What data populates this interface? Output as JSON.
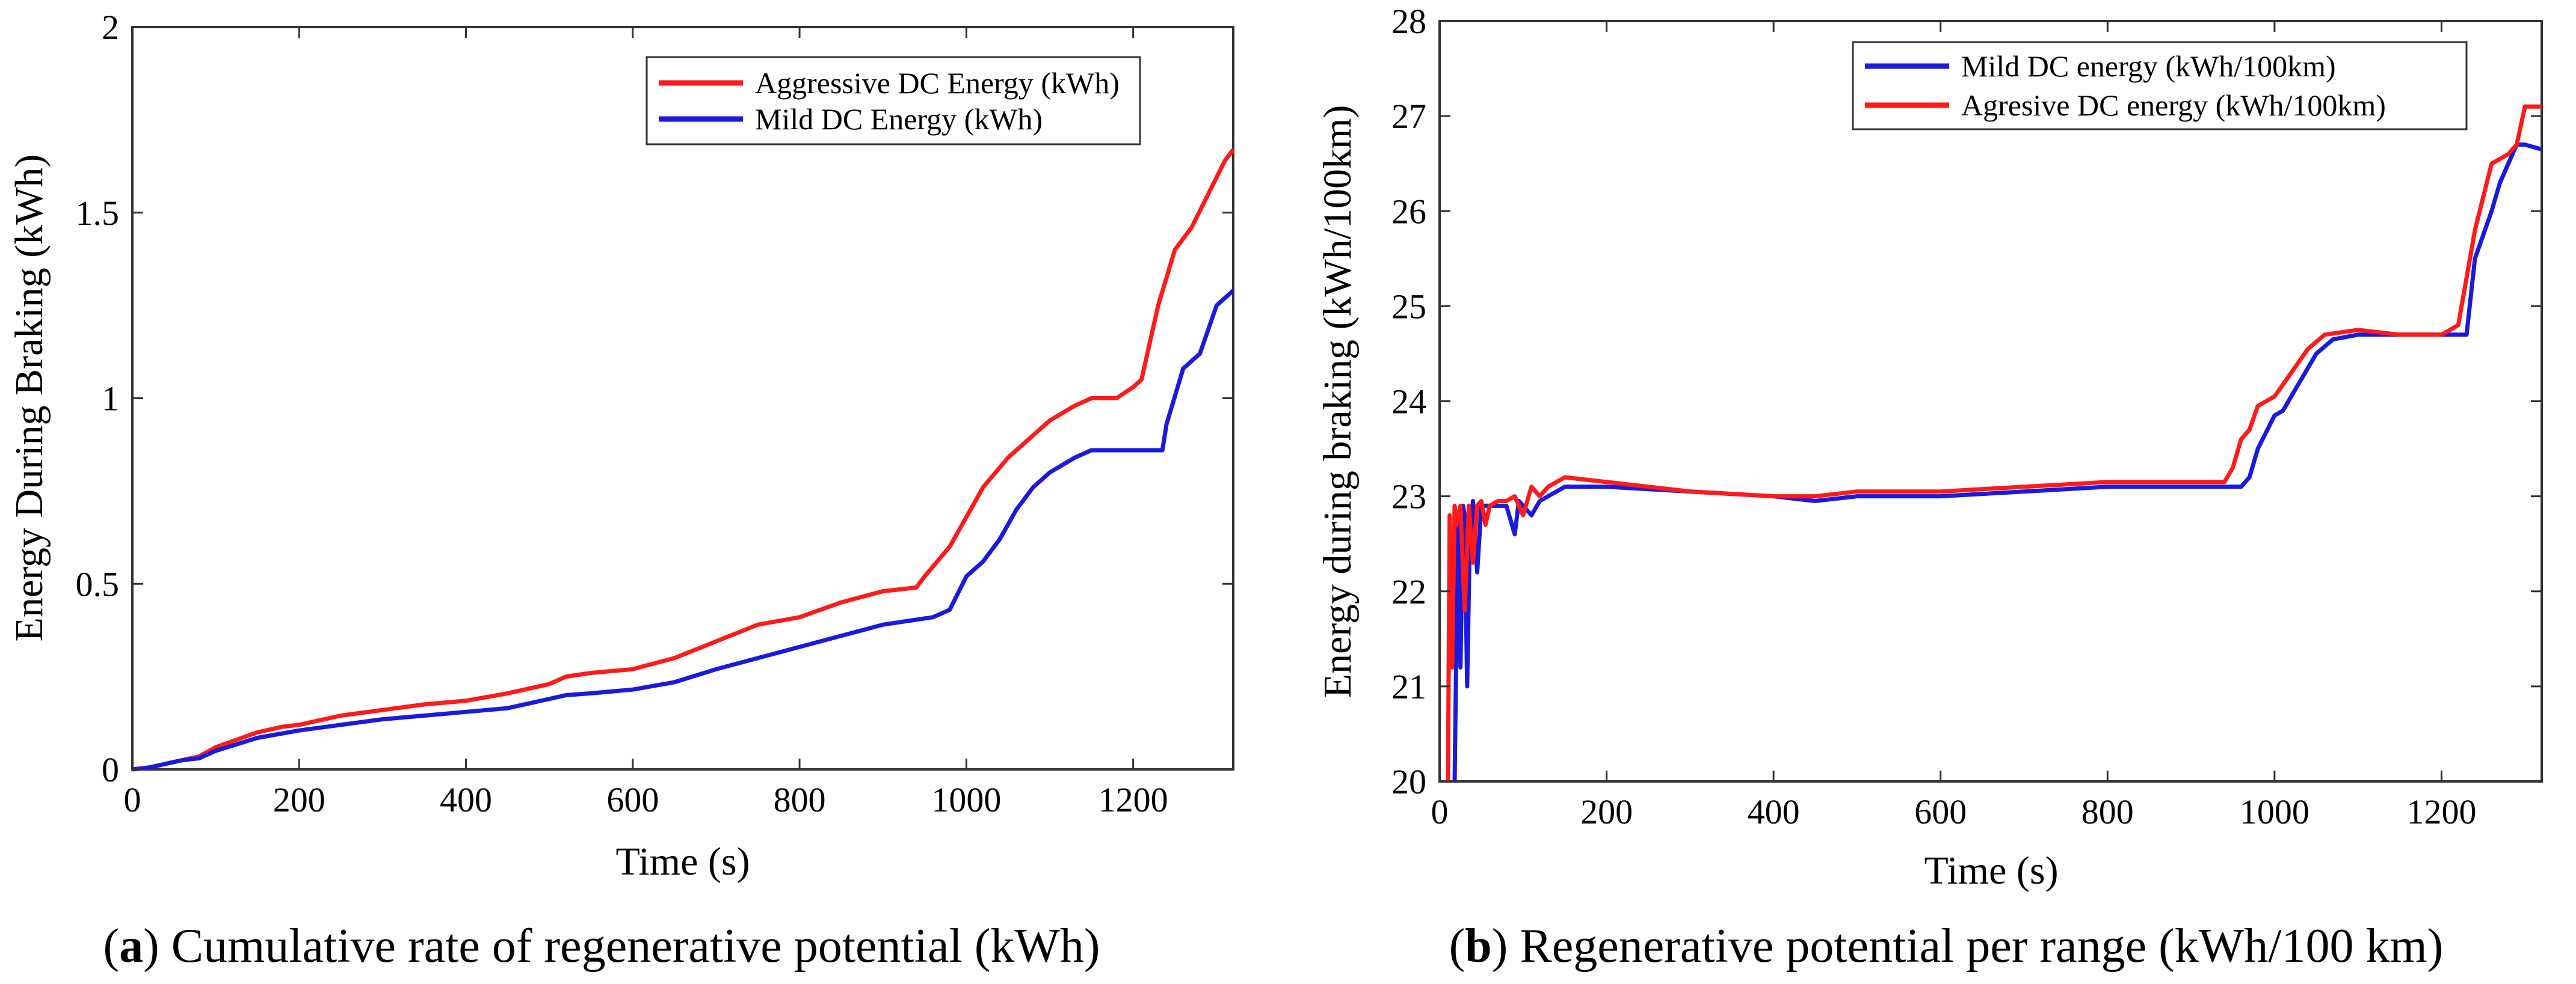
{
  "figure": {
    "captions": [
      {
        "paren_open": "(",
        "letter": "a",
        "rest": ") Cumulative rate of regenerative potential (kWh)"
      },
      {
        "paren_open": "(",
        "letter": "b",
        "rest": ") Regenerative potential per range (kWh/100 km)"
      }
    ]
  },
  "colors": {
    "red": "#ff1a1a",
    "blue": "#1a1adf",
    "axis": "#333333"
  },
  "chart_data": [
    {
      "type": "line",
      "title": "",
      "xlabel": "Time (s)",
      "ylabel": "Energy During Braking (kWh)",
      "xlim": [
        0,
        1320
      ],
      "ylim": [
        0,
        2
      ],
      "xticks": [
        0,
        200,
        400,
        600,
        800,
        1000,
        1200
      ],
      "xtick_labels": [
        "0",
        "200",
        "400",
        "600",
        "800",
        "1000",
        "1200"
      ],
      "yticks": [
        0,
        0.5,
        1,
        1.5,
        2
      ],
      "ytick_labels": [
        "0",
        "0.5",
        "1",
        "1.5",
        "2"
      ],
      "legend_position": "top-right",
      "grid": false,
      "series": [
        {
          "name": "Aggressive DC Energy (kWh)",
          "color": "#ff1a1a",
          "x": [
            0,
            20,
            40,
            60,
            80,
            100,
            150,
            180,
            200,
            250,
            300,
            350,
            400,
            450,
            500,
            520,
            550,
            600,
            650,
            700,
            750,
            800,
            850,
            900,
            940,
            950,
            980,
            1000,
            1020,
            1050,
            1080,
            1100,
            1130,
            1150,
            1180,
            1200,
            1210,
            1230,
            1250,
            1270,
            1290,
            1310,
            1320
          ],
          "y": [
            0,
            0.005,
            0.015,
            0.025,
            0.035,
            0.06,
            0.1,
            0.115,
            0.12,
            0.145,
            0.16,
            0.175,
            0.185,
            0.205,
            0.23,
            0.25,
            0.26,
            0.27,
            0.3,
            0.345,
            0.39,
            0.41,
            0.45,
            0.48,
            0.49,
            0.52,
            0.6,
            0.68,
            0.76,
            0.84,
            0.9,
            0.94,
            0.98,
            1.0,
            1.0,
            1.03,
            1.05,
            1.25,
            1.4,
            1.46,
            1.55,
            1.64,
            1.67
          ]
        },
        {
          "name": "Mild DC Energy (kWh)",
          "color": "#1a1adf",
          "x": [
            0,
            20,
            40,
            60,
            80,
            100,
            150,
            200,
            250,
            300,
            350,
            400,
            450,
            500,
            520,
            550,
            600,
            650,
            700,
            750,
            800,
            850,
            900,
            960,
            980,
            1000,
            1020,
            1040,
            1060,
            1080,
            1100,
            1130,
            1150,
            1200,
            1235,
            1240,
            1260,
            1280,
            1300,
            1320
          ],
          "y": [
            0,
            0.005,
            0.015,
            0.025,
            0.03,
            0.05,
            0.085,
            0.105,
            0.12,
            0.135,
            0.145,
            0.155,
            0.165,
            0.19,
            0.2,
            0.205,
            0.215,
            0.235,
            0.27,
            0.3,
            0.33,
            0.36,
            0.39,
            0.41,
            0.43,
            0.52,
            0.56,
            0.62,
            0.7,
            0.76,
            0.8,
            0.84,
            0.86,
            0.86,
            0.86,
            0.93,
            1.08,
            1.12,
            1.25,
            1.29
          ]
        }
      ]
    },
    {
      "type": "line",
      "title": "",
      "xlabel": "Time (s)",
      "ylabel": "Energy during braking (kWh/100km)",
      "xlim": [
        0,
        1320
      ],
      "ylim": [
        20,
        28
      ],
      "xticks": [
        0,
        200,
        400,
        600,
        800,
        1000,
        1200
      ],
      "xtick_labels": [
        "0",
        "200",
        "400",
        "600",
        "800",
        "1000",
        "1200"
      ],
      "yticks": [
        20,
        21,
        22,
        23,
        24,
        25,
        26,
        27,
        28
      ],
      "ytick_labels": [
        "20",
        "21",
        "22",
        "23",
        "24",
        "25",
        "26",
        "27",
        "28"
      ],
      "legend_position": "top-right",
      "grid": false,
      "series": [
        {
          "name": "Mild DC energy (kWh/100km)",
          "color": "#1a1adf",
          "x": [
            18,
            22,
            25,
            28,
            30,
            33,
            36,
            40,
            45,
            50,
            60,
            70,
            80,
            90,
            95,
            100,
            110,
            120,
            150,
            200,
            300,
            400,
            450,
            500,
            600,
            700,
            800,
            900,
            950,
            960,
            970,
            980,
            1000,
            1010,
            1030,
            1050,
            1070,
            1100,
            1150,
            1200,
            1230,
            1240,
            1260,
            1270,
            1290,
            1300,
            1320
          ],
          "y": [
            20.0,
            22.8,
            21.2,
            22.9,
            22.8,
            21.0,
            22.5,
            22.95,
            22.2,
            22.9,
            22.9,
            22.9,
            22.9,
            22.6,
            22.95,
            22.9,
            22.8,
            22.95,
            23.1,
            23.1,
            23.05,
            23.0,
            22.95,
            23.0,
            23.0,
            23.05,
            23.1,
            23.1,
            23.1,
            23.1,
            23.2,
            23.5,
            23.85,
            23.9,
            24.2,
            24.5,
            24.65,
            24.7,
            24.7,
            24.7,
            24.7,
            25.5,
            26.0,
            26.3,
            26.7,
            26.7,
            26.65
          ]
        },
        {
          "name": "Agresive DC energy (kWh/100km)",
          "color": "#ff1a1a",
          "x": [
            10,
            12,
            15,
            18,
            20,
            25,
            30,
            35,
            40,
            45,
            50,
            55,
            60,
            70,
            80,
            90,
            100,
            110,
            120,
            130,
            150,
            200,
            300,
            400,
            450,
            500,
            600,
            700,
            800,
            900,
            940,
            950,
            960,
            970,
            980,
            1000,
            1020,
            1040,
            1060,
            1100,
            1150,
            1200,
            1210,
            1220,
            1240,
            1260,
            1280,
            1290,
            1300,
            1320
          ],
          "y": [
            20.0,
            22.8,
            21.2,
            22.9,
            22.7,
            22.9,
            21.8,
            22.9,
            22.3,
            22.9,
            22.95,
            22.7,
            22.9,
            22.95,
            22.95,
            23.0,
            22.8,
            23.1,
            23.0,
            23.1,
            23.2,
            23.15,
            23.05,
            23.0,
            23.0,
            23.05,
            23.05,
            23.1,
            23.15,
            23.15,
            23.15,
            23.3,
            23.6,
            23.7,
            23.95,
            24.05,
            24.3,
            24.55,
            24.7,
            24.75,
            24.7,
            24.7,
            24.75,
            24.8,
            25.8,
            26.5,
            26.6,
            26.7,
            27.1,
            27.1
          ]
        }
      ]
    }
  ]
}
